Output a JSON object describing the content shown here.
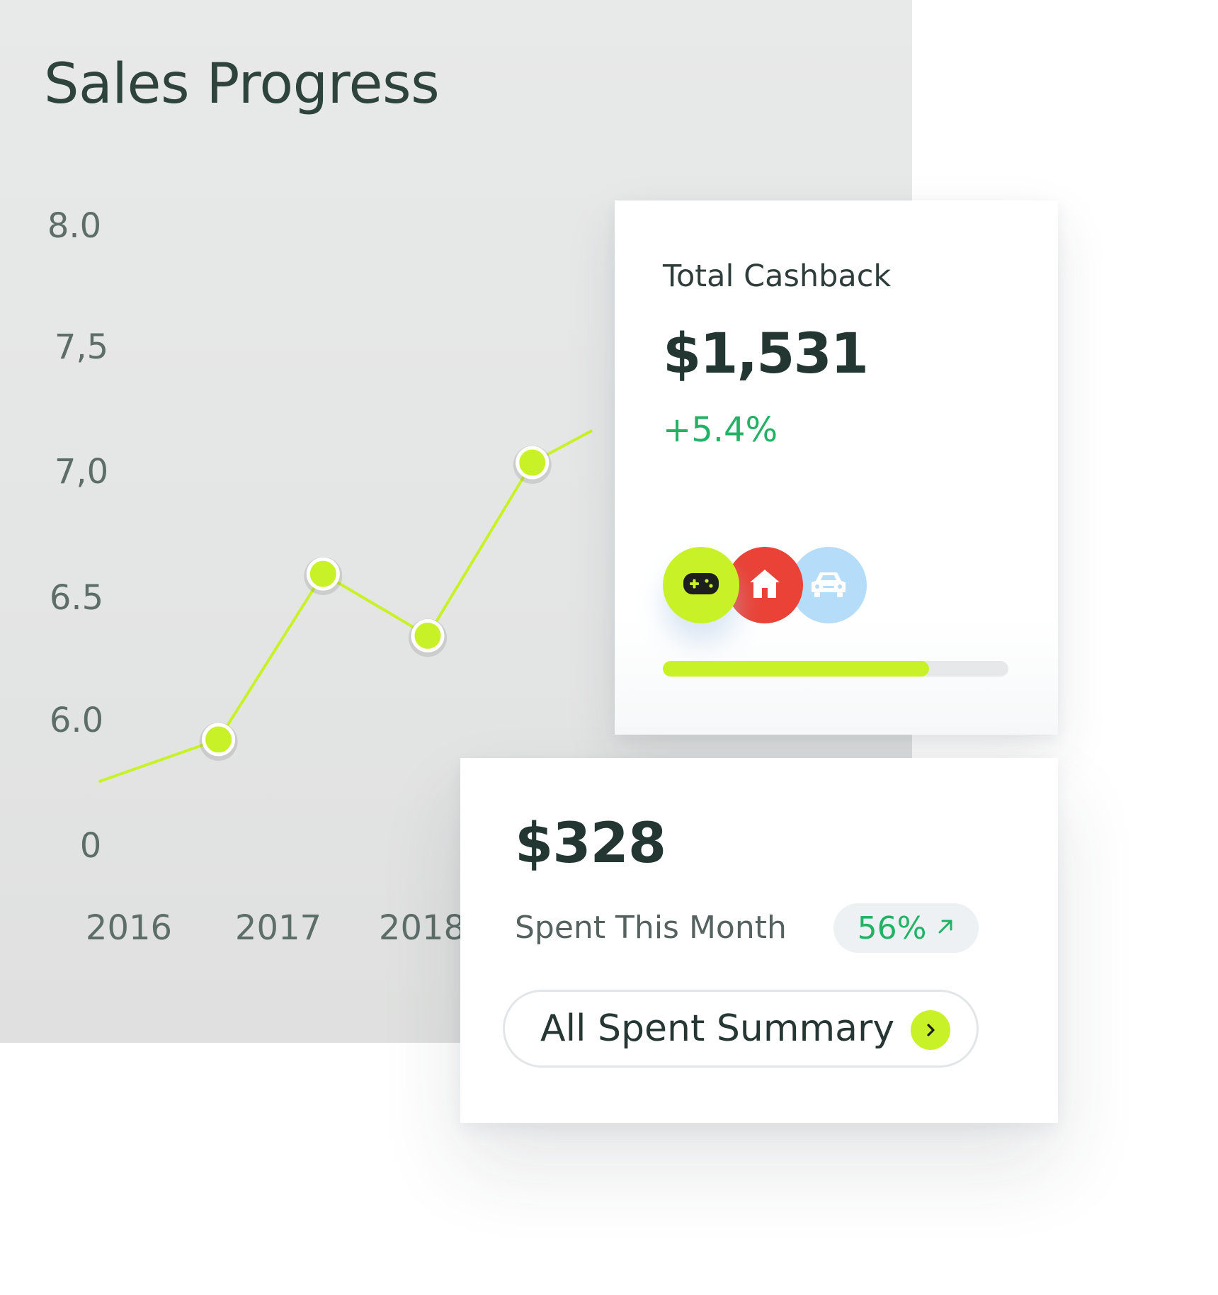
{
  "chart_panel": {
    "title": "Sales Progress"
  },
  "chart_data": {
    "type": "line",
    "title": "Sales Progress",
    "xlabel": "",
    "ylabel": "",
    "x_tick_labels": [
      "2016",
      "2017",
      "2018"
    ],
    "y_tick_labels": [
      "8.0",
      "7,5",
      "7,0",
      "6.5",
      "6.0",
      "0"
    ],
    "points": [
      {
        "x": 2015.8,
        "y": 5.75
      },
      {
        "x": 2016.6,
        "y": 5.92
      },
      {
        "x": 2017.3,
        "y": 6.59
      },
      {
        "x": 2018.0,
        "y": 6.34
      },
      {
        "x": 2018.7,
        "y": 7.04
      },
      {
        "x": 2019.1,
        "y": 7.17
      }
    ],
    "marked_points": [
      1,
      2,
      3,
      4
    ],
    "grid": false,
    "line_color": "#c8f227"
  },
  "cashback_card": {
    "label": "Total Cashback",
    "amount": "$1,531",
    "change": "+5.4%",
    "categories": [
      {
        "icon": "gamepad-icon",
        "color": "#c8f227"
      },
      {
        "icon": "home-icon",
        "color": "#ea4236"
      },
      {
        "icon": "car-icon",
        "color": "#b5dcf8"
      }
    ],
    "progress": 0.77,
    "progress_color": "#c8f227"
  },
  "spent_card": {
    "amount": "$328",
    "label": "Spent This Month",
    "badge": "56%",
    "badge_icon": "arrow-up-right-icon",
    "button_label": "All Spent Summary",
    "button_icon": "chevron-right-icon"
  },
  "colors": {
    "accent": "#c8f227",
    "positive": "#22b265",
    "text_dark": "#243632"
  }
}
